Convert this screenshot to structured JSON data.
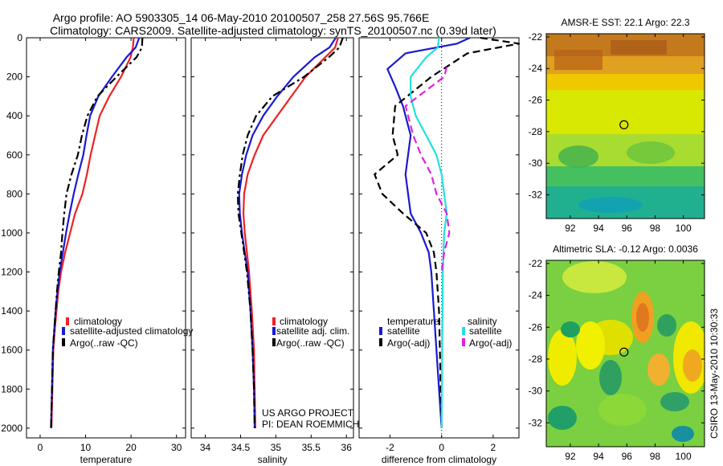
{
  "title_line1": "Argo profile: AO 5903305_14 06-May-2010 20100507_258 27.56S 95.766E",
  "title_line2": "Climatology: CARS2009. Satellite-adjusted climatology: synTS_20100507.nc (0.39d later)",
  "project_line1": "US ARGO PROJECT",
  "project_line2": "PI: DEAN ROEMMICH",
  "credit": "CSIRO 13-May-2010 10:30:33",
  "colors": {
    "climatology": "#ee2222",
    "satellite": "#1a1ad0",
    "argo": "#000000",
    "satellite_sal_diff": "#22e0e0",
    "argo_sal_diff": "#e020e0"
  },
  "chart_data": [
    {
      "type": "line",
      "xlabel": "temperature",
      "xlim": [
        -3,
        32
      ],
      "ylim": [
        2050,
        0
      ],
      "xticks": [
        0,
        10,
        20,
        30
      ],
      "yticks": [
        0,
        200,
        400,
        600,
        800,
        1000,
        1200,
        1400,
        1600,
        1800,
        2000
      ],
      "legend": [
        "climatology",
        "satellite-adjusted climatology",
        "Argo(..raw -QC)"
      ],
      "series": [
        {
          "name": "climatology",
          "color_key": "climatology",
          "dash": "solid",
          "x": [
            20.6,
            20.4,
            19.9,
            17.8,
            15.2,
            13.1,
            12.1,
            11.1,
            10.3,
            9.3,
            7.7,
            6.6,
            5.5,
            4.6,
            4.0,
            3.6,
            3.2,
            2.9,
            2.7,
            2.5
          ],
          "y": [
            0,
            50,
            100,
            200,
            300,
            400,
            500,
            600,
            700,
            800,
            900,
            1000,
            1100,
            1200,
            1300,
            1400,
            1500,
            1600,
            1800,
            2000
          ]
        },
        {
          "name": "satellite-adjusted climatology",
          "color_key": "satellite",
          "dash": "solid",
          "x": [
            21.8,
            21.0,
            19.0,
            15.8,
            12.8,
            11.0,
            10.2,
            9.5,
            8.4,
            7.4,
            6.5,
            5.7,
            5.0,
            4.3,
            3.8,
            3.4,
            3.1,
            2.8,
            2.6,
            2.4
          ],
          "y": [
            0,
            50,
            100,
            200,
            300,
            400,
            500,
            600,
            700,
            800,
            900,
            1000,
            1100,
            1200,
            1300,
            1400,
            1500,
            1600,
            1800,
            2000
          ]
        },
        {
          "name": "Argo(..raw -QC)",
          "color_key": "argo",
          "dash": "dashdot",
          "x": [
            22.5,
            22.4,
            21.2,
            16.8,
            12.6,
            10.4,
            9.2,
            8.3,
            6.9,
            5.8,
            5.3,
            4.9,
            4.6,
            4.1,
            3.7,
            3.4,
            3.1,
            2.8,
            2.6,
            2.4
          ],
          "y": [
            0,
            50,
            100,
            200,
            300,
            400,
            500,
            600,
            700,
            800,
            900,
            1000,
            1100,
            1200,
            1300,
            1400,
            1500,
            1600,
            1800,
            2000
          ]
        }
      ]
    },
    {
      "type": "line",
      "xlabel": "salinity",
      "xlim": [
        33.8,
        36.1
      ],
      "ylim": [
        2050,
        0
      ],
      "xticks": [
        34,
        34.5,
        35,
        35.5,
        36
      ],
      "legend": [
        "climatology",
        "satellite adj. clim.",
        "Argo(..raw -QC)"
      ],
      "series": [
        {
          "name": "climatology",
          "color_key": "climatology",
          "dash": "solid",
          "x": [
            35.88,
            35.84,
            35.7,
            35.42,
            35.22,
            35.02,
            34.82,
            34.7,
            34.6,
            34.55,
            34.54,
            34.56,
            34.59,
            34.62,
            34.66,
            34.69,
            34.7,
            34.71
          ],
          "y": [
            0,
            50,
            100,
            200,
            300,
            400,
            500,
            600,
            700,
            800,
            900,
            1000,
            1100,
            1200,
            1400,
            1600,
            1800,
            2000
          ]
        },
        {
          "name": "satellite adj. clim.",
          "color_key": "satellite",
          "dash": "solid",
          "x": [
            35.85,
            35.76,
            35.55,
            35.25,
            35.02,
            34.82,
            34.67,
            34.58,
            34.52,
            34.48,
            34.49,
            34.52,
            34.56,
            34.6,
            34.64,
            34.67,
            34.69,
            34.7
          ],
          "y": [
            0,
            50,
            100,
            200,
            300,
            400,
            500,
            600,
            700,
            800,
            900,
            1000,
            1100,
            1200,
            1400,
            1600,
            1800,
            2000
          ]
        },
        {
          "name": "Argo(..raw -QC)",
          "color_key": "argo",
          "dash": "dashdot",
          "x": [
            35.95,
            35.9,
            35.75,
            35.4,
            34.95,
            34.72,
            34.6,
            34.53,
            34.49,
            34.46,
            34.47,
            34.51,
            34.55,
            34.59,
            34.64,
            34.67,
            34.69,
            34.7
          ],
          "y": [
            0,
            50,
            100,
            200,
            300,
            400,
            500,
            600,
            700,
            800,
            900,
            1000,
            1100,
            1200,
            1400,
            1600,
            1800,
            2000
          ]
        }
      ]
    },
    {
      "type": "line",
      "xlabel": "difference from climatology",
      "xlim": [
        -3.2,
        3.0
      ],
      "ylim": [
        2050,
        0
      ],
      "xticks": [
        -2,
        0,
        2
      ],
      "legend_headers": [
        "temperature",
        "salinity"
      ],
      "legend": [
        "satellite",
        "Argo(-adj)",
        "satellite",
        "Argo(-adj)"
      ],
      "series": [
        {
          "name": "satellite",
          "color_key": "satellite",
          "dash": "solid",
          "x": [
            1.1,
            0.6,
            -1.4,
            -2.1,
            -1.8,
            -1.5,
            -1.2,
            -1.3,
            -1.4,
            -1.3,
            -1.2,
            -0.8,
            -0.5,
            -0.4,
            -0.3,
            -0.2,
            -0.1,
            -0.05,
            0
          ],
          "y": [
            0,
            30,
            80,
            160,
            250,
            350,
            500,
            600,
            700,
            800,
            900,
            1000,
            1100,
            1200,
            1400,
            1600,
            1800,
            1900,
            2000
          ]
        },
        {
          "name": "Argo(-adj)",
          "color_key": "argo",
          "dash": "dash",
          "x": [
            1.5,
            3.0,
            1.0,
            -0.4,
            -1.8,
            -1.9,
            -1.7,
            -2.6,
            -2.3,
            -1.5,
            -0.6,
            -0.3,
            -0.2,
            -0.1,
            -0.05,
            0
          ],
          "y": [
            0,
            30,
            80,
            200,
            350,
            500,
            600,
            700,
            800,
            900,
            1000,
            1100,
            1200,
            1400,
            1700,
            2000
          ]
        },
        {
          "name": "satellite",
          "color_key": "satellite_sal_diff",
          "dash": "solid",
          "x": [
            -0.1,
            -0.15,
            -0.6,
            -1.2,
            -1.2,
            -1.0,
            -0.6,
            -0.2,
            0,
            0.1,
            0.2,
            0.1,
            0.05,
            0.02,
            0
          ],
          "y": [
            0,
            50,
            100,
            200,
            300,
            400,
            500,
            600,
            700,
            800,
            900,
            1000,
            1200,
            1600,
            2000
          ]
        },
        {
          "name": "Argo(-adj)",
          "color_key": "argo_sal_diff",
          "dash": "dash",
          "x": [
            0.2,
            0.1,
            -1.4,
            -1.1,
            -0.8,
            -0.4,
            -0.2,
            0.2,
            0.3,
            0.1,
            0
          ],
          "y": [
            150,
            200,
            350,
            500,
            600,
            700,
            800,
            900,
            1000,
            1100,
            1200
          ]
        }
      ]
    },
    {
      "type": "heatmap",
      "title": "AMSR-E SST: 22.1 Argo: 22.3",
      "xlim": [
        90.3,
        101.5
      ],
      "ylim": [
        -33.5,
        -21.8
      ],
      "xticks": [
        92,
        94,
        96,
        98,
        100
      ],
      "yticks": [
        -22,
        -24,
        -26,
        -28,
        -30,
        -32
      ],
      "marker": {
        "x": 95.8,
        "y": -27.56
      }
    },
    {
      "type": "heatmap",
      "title": "Altimetric SLA: -0.12 Argo: 0.0036",
      "xlim": [
        90.3,
        101.5
      ],
      "ylim": [
        -33.5,
        -21.8
      ],
      "xticks": [
        92,
        94,
        96,
        98,
        100
      ],
      "yticks": [
        -22,
        -24,
        -26,
        -28,
        -30,
        -32
      ],
      "marker": {
        "x": 95.8,
        "y": -27.56
      }
    }
  ]
}
